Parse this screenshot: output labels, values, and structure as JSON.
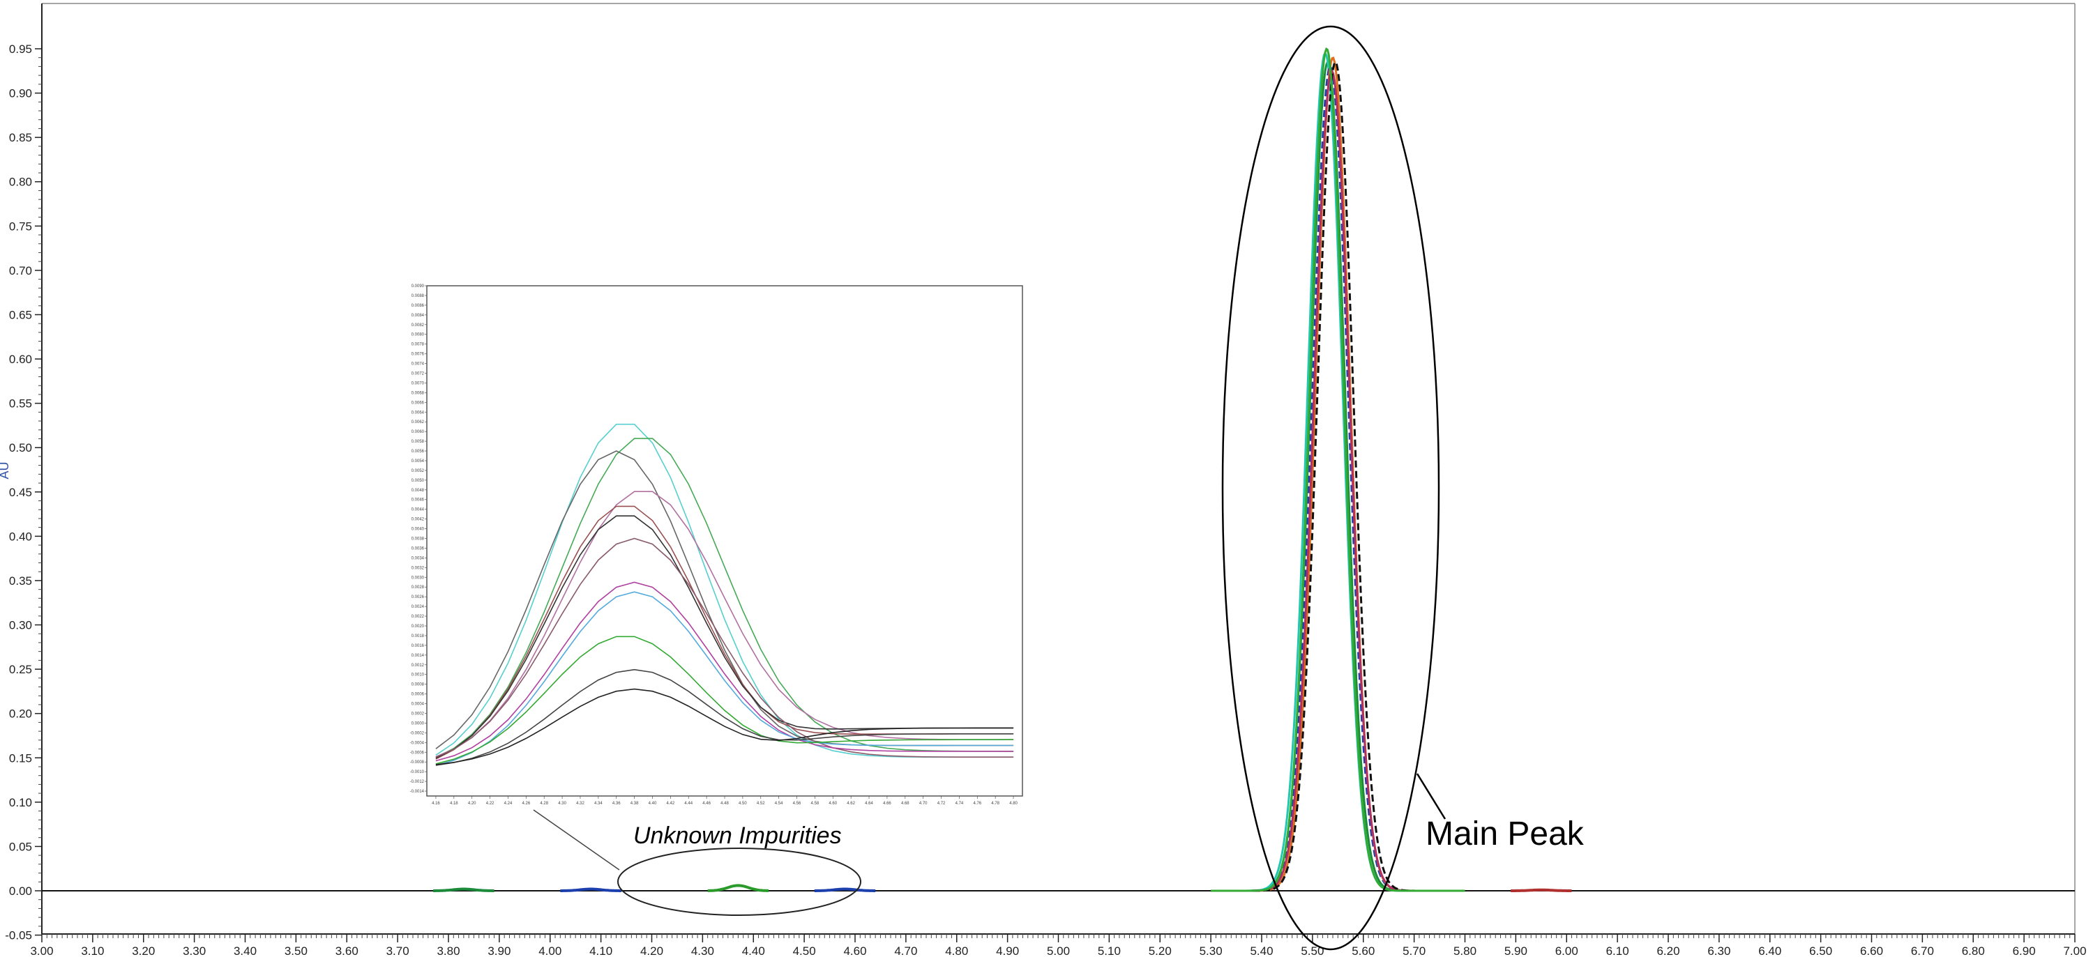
{
  "chart_data": {
    "type": "line",
    "title": "",
    "xlabel": "",
    "ylabel": "AU",
    "xlim": [
      3.0,
      7.0
    ],
    "ylim": [
      -0.05,
      0.98
    ],
    "x_ticks": [
      "3.00",
      "3.10",
      "3.20",
      "3.30",
      "3.40",
      "3.50",
      "3.60",
      "3.70",
      "3.80",
      "3.90",
      "4.00",
      "4.10",
      "4.20",
      "4.30",
      "4.40",
      "4.50",
      "4.60",
      "4.70",
      "4.80",
      "4.90",
      "5.00",
      "5.10",
      "5.20",
      "5.30",
      "5.40",
      "5.50",
      "5.60",
      "5.70",
      "5.80",
      "5.90",
      "6.00",
      "6.10",
      "6.20",
      "6.30",
      "6.40",
      "6.50",
      "6.60",
      "6.70",
      "6.80",
      "6.90",
      "7.00"
    ],
    "y_ticks": [
      "-0.05",
      "0.00",
      "0.05",
      "0.10",
      "0.15",
      "0.20",
      "0.25",
      "0.30",
      "0.35",
      "0.40",
      "0.45",
      "0.50",
      "0.55",
      "0.60",
      "0.65",
      "0.70",
      "0.75",
      "0.80",
      "0.85",
      "0.90",
      "0.95"
    ],
    "grid": false,
    "legend": "none",
    "series": [
      {
        "color": "#1b8a3a",
        "peak_x": 5.53,
        "peak_y": 0.935,
        "width": 0.034
      },
      {
        "color": "#22c7b0",
        "peak_x": 5.525,
        "peak_y": 0.945,
        "width": 0.034
      },
      {
        "color": "#1c3fae",
        "peak_x": 5.535,
        "peak_y": 0.93,
        "width": 0.035
      },
      {
        "color": "#e07020",
        "peak_x": 5.54,
        "peak_y": 0.94,
        "width": 0.034
      },
      {
        "color": "#b03060",
        "peak_x": 5.538,
        "peak_y": 0.925,
        "width": 0.035
      },
      {
        "color": "#111111",
        "peak_x": 5.545,
        "peak_y": 0.935,
        "width": 0.035
      },
      {
        "color": "#33aa33",
        "peak_x": 5.528,
        "peak_y": 0.95,
        "width": 0.033
      }
    ],
    "impurity_peaks": [
      {
        "x": 3.83,
        "y": 0.002
      },
      {
        "x": 4.08,
        "y": 0.002
      },
      {
        "x": 4.37,
        "y": 0.006
      },
      {
        "x": 4.58,
        "y": 0.002
      },
      {
        "x": 5.95,
        "y": 0.001
      }
    ],
    "annotations": {
      "main_peak": "Main Peak",
      "impurities": "Unknown Impurities"
    },
    "inset": {
      "x_ticks": [
        "4.16",
        "4.18",
        "4.20",
        "4.22",
        "4.24",
        "4.26",
        "4.28",
        "4.30",
        "4.32",
        "4.34",
        "4.36",
        "4.38",
        "4.40",
        "4.42",
        "4.44",
        "4.46",
        "4.48",
        "4.50",
        "4.52",
        "4.54",
        "4.56",
        "4.58",
        "4.60",
        "4.62",
        "4.64",
        "4.66",
        "4.68",
        "4.70",
        "4.72",
        "4.74",
        "4.76",
        "4.78",
        "4.80"
      ],
      "y_ticks": [
        "0.0090",
        "0.0088",
        "0.0086",
        "0.0084",
        "0.0082",
        "0.0080",
        "0.0078",
        "0.0076",
        "0.0074",
        "0.0072",
        "0.0070",
        "0.0068",
        "0.0066",
        "0.0064",
        "0.0062",
        "0.0060",
        "0.0058",
        "0.0056",
        "0.0054",
        "0.0052",
        "0.0050",
        "0.0048",
        "0.0046",
        "0.0044",
        "0.0042",
        "0.0040",
        "0.0038",
        "0.0036",
        "0.0034",
        "0.0032",
        "0.0030",
        "0.0028",
        "0.0026",
        "0.0024",
        "0.0022",
        "0.0020",
        "0.0018",
        "0.0016",
        "0.0014",
        "0.0012",
        "0.0010",
        "0.0008",
        "0.0006",
        "0.0004",
        "0.0002",
        "0.0000",
        "-0.0002",
        "-0.0004",
        "-0.0006",
        "-0.0008",
        "-0.0010",
        "-0.0012",
        "-0.0014"
      ],
      "xlim": [
        4.15,
        4.81
      ],
      "ylim": [
        -0.0015,
        0.009
      ],
      "series": [
        {
          "color": "#55cfcf",
          "peak_x": 4.37,
          "peak_y": 0.0062,
          "width": 0.085
        },
        {
          "color": "#44aa55",
          "peak_x": 4.39,
          "peak_y": 0.0059,
          "width": 0.09
        },
        {
          "color": "#666666",
          "peak_x": 4.36,
          "peak_y": 0.0056,
          "width": 0.085
        },
        {
          "color": "#b070a0",
          "peak_x": 4.39,
          "peak_y": 0.0048,
          "width": 0.09
        },
        {
          "color": "#9a5050",
          "peak_x": 4.37,
          "peak_y": 0.0045,
          "width": 0.085
        },
        {
          "color": "#333333",
          "peak_x": 4.37,
          "peak_y": 0.0043,
          "width": 0.085
        },
        {
          "color": "#8a5a6a",
          "peak_x": 4.38,
          "peak_y": 0.0038,
          "width": 0.09
        },
        {
          "color": "#b040a0",
          "peak_x": 4.38,
          "peak_y": 0.0029,
          "width": 0.085
        },
        {
          "color": "#55aadd",
          "peak_x": 4.38,
          "peak_y": 0.0027,
          "width": 0.085
        },
        {
          "color": "#33aa33",
          "peak_x": 4.37,
          "peak_y": 0.0018,
          "width": 0.085
        },
        {
          "color": "#444444",
          "peak_x": 4.38,
          "peak_y": 0.0011,
          "width": 0.085
        },
        {
          "color": "#222222",
          "peak_x": 4.38,
          "peak_y": 0.0007,
          "width": 0.085
        }
      ]
    }
  }
}
